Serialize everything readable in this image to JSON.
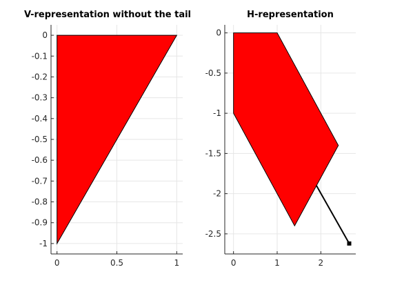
{
  "chart_data": [
    {
      "type": "area",
      "title": "V-representation without the tail",
      "xlim": [
        -0.05,
        1.05
      ],
      "ylim": [
        -1.05,
        0.05
      ],
      "xticks": [
        0,
        0.5,
        1
      ],
      "xtick_labels": [
        "0",
        "0.5",
        "1"
      ],
      "yticks": [
        0,
        -0.1,
        -0.2,
        -0.3,
        -0.4,
        -0.5,
        -0.6,
        -0.7,
        -0.8,
        -0.9,
        -1
      ],
      "ytick_labels": [
        "0",
        "-0.1",
        "-0.2",
        "-0.3",
        "-0.4",
        "-0.5",
        "-0.6",
        "-0.7",
        "-0.8",
        "-0.9",
        "-1"
      ],
      "grid": true,
      "fill_color": "#ff0000",
      "edge_color": "#000000",
      "polygon": [
        [
          0,
          0
        ],
        [
          1,
          0
        ],
        [
          0,
          -1
        ]
      ]
    },
    {
      "type": "area",
      "title": "H-representation",
      "xlim": [
        -0.2,
        2.8
      ],
      "ylim": [
        -2.75,
        0.1
      ],
      "xticks": [
        0,
        1,
        2
      ],
      "xtick_labels": [
        "0",
        "1",
        "2"
      ],
      "yticks": [
        0,
        -0.5,
        -1,
        -1.5,
        -2,
        -2.5
      ],
      "ytick_labels": [
        "0",
        "-0.5",
        "-1",
        "-1.5",
        "-2",
        "-2.5"
      ],
      "grid": true,
      "fill_color": "#ff0000",
      "edge_color": "#000000",
      "polygon": [
        [
          0,
          0
        ],
        [
          1,
          0
        ],
        [
          2.4,
          -1.4
        ],
        [
          1.4,
          -2.4
        ],
        [
          0,
          -1
        ]
      ],
      "tail": [
        [
          1.9,
          -1.9
        ],
        [
          2.65,
          -2.62
        ]
      ],
      "tail_marker": [
        2.65,
        -2.62
      ]
    }
  ]
}
